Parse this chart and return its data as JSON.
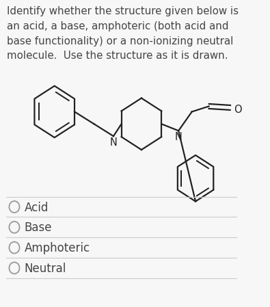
{
  "background_color": "#f7f7f7",
  "question_text": "Identify whether the structure given below is\nan acid, a base, amphoteric (both acid and\nbase functionality) or a non-ionizing neutral\nmolecule.  Use the structure as it is drawn.",
  "options": [
    "Acid",
    "Base",
    "Amphoteric",
    "Neutral"
  ],
  "text_color": "#444444",
  "line_color": "#cccccc",
  "structure_color": "#222222",
  "font_size_question": 10.8,
  "font_size_options": 12.0,
  "font_size_atom": 10.5
}
